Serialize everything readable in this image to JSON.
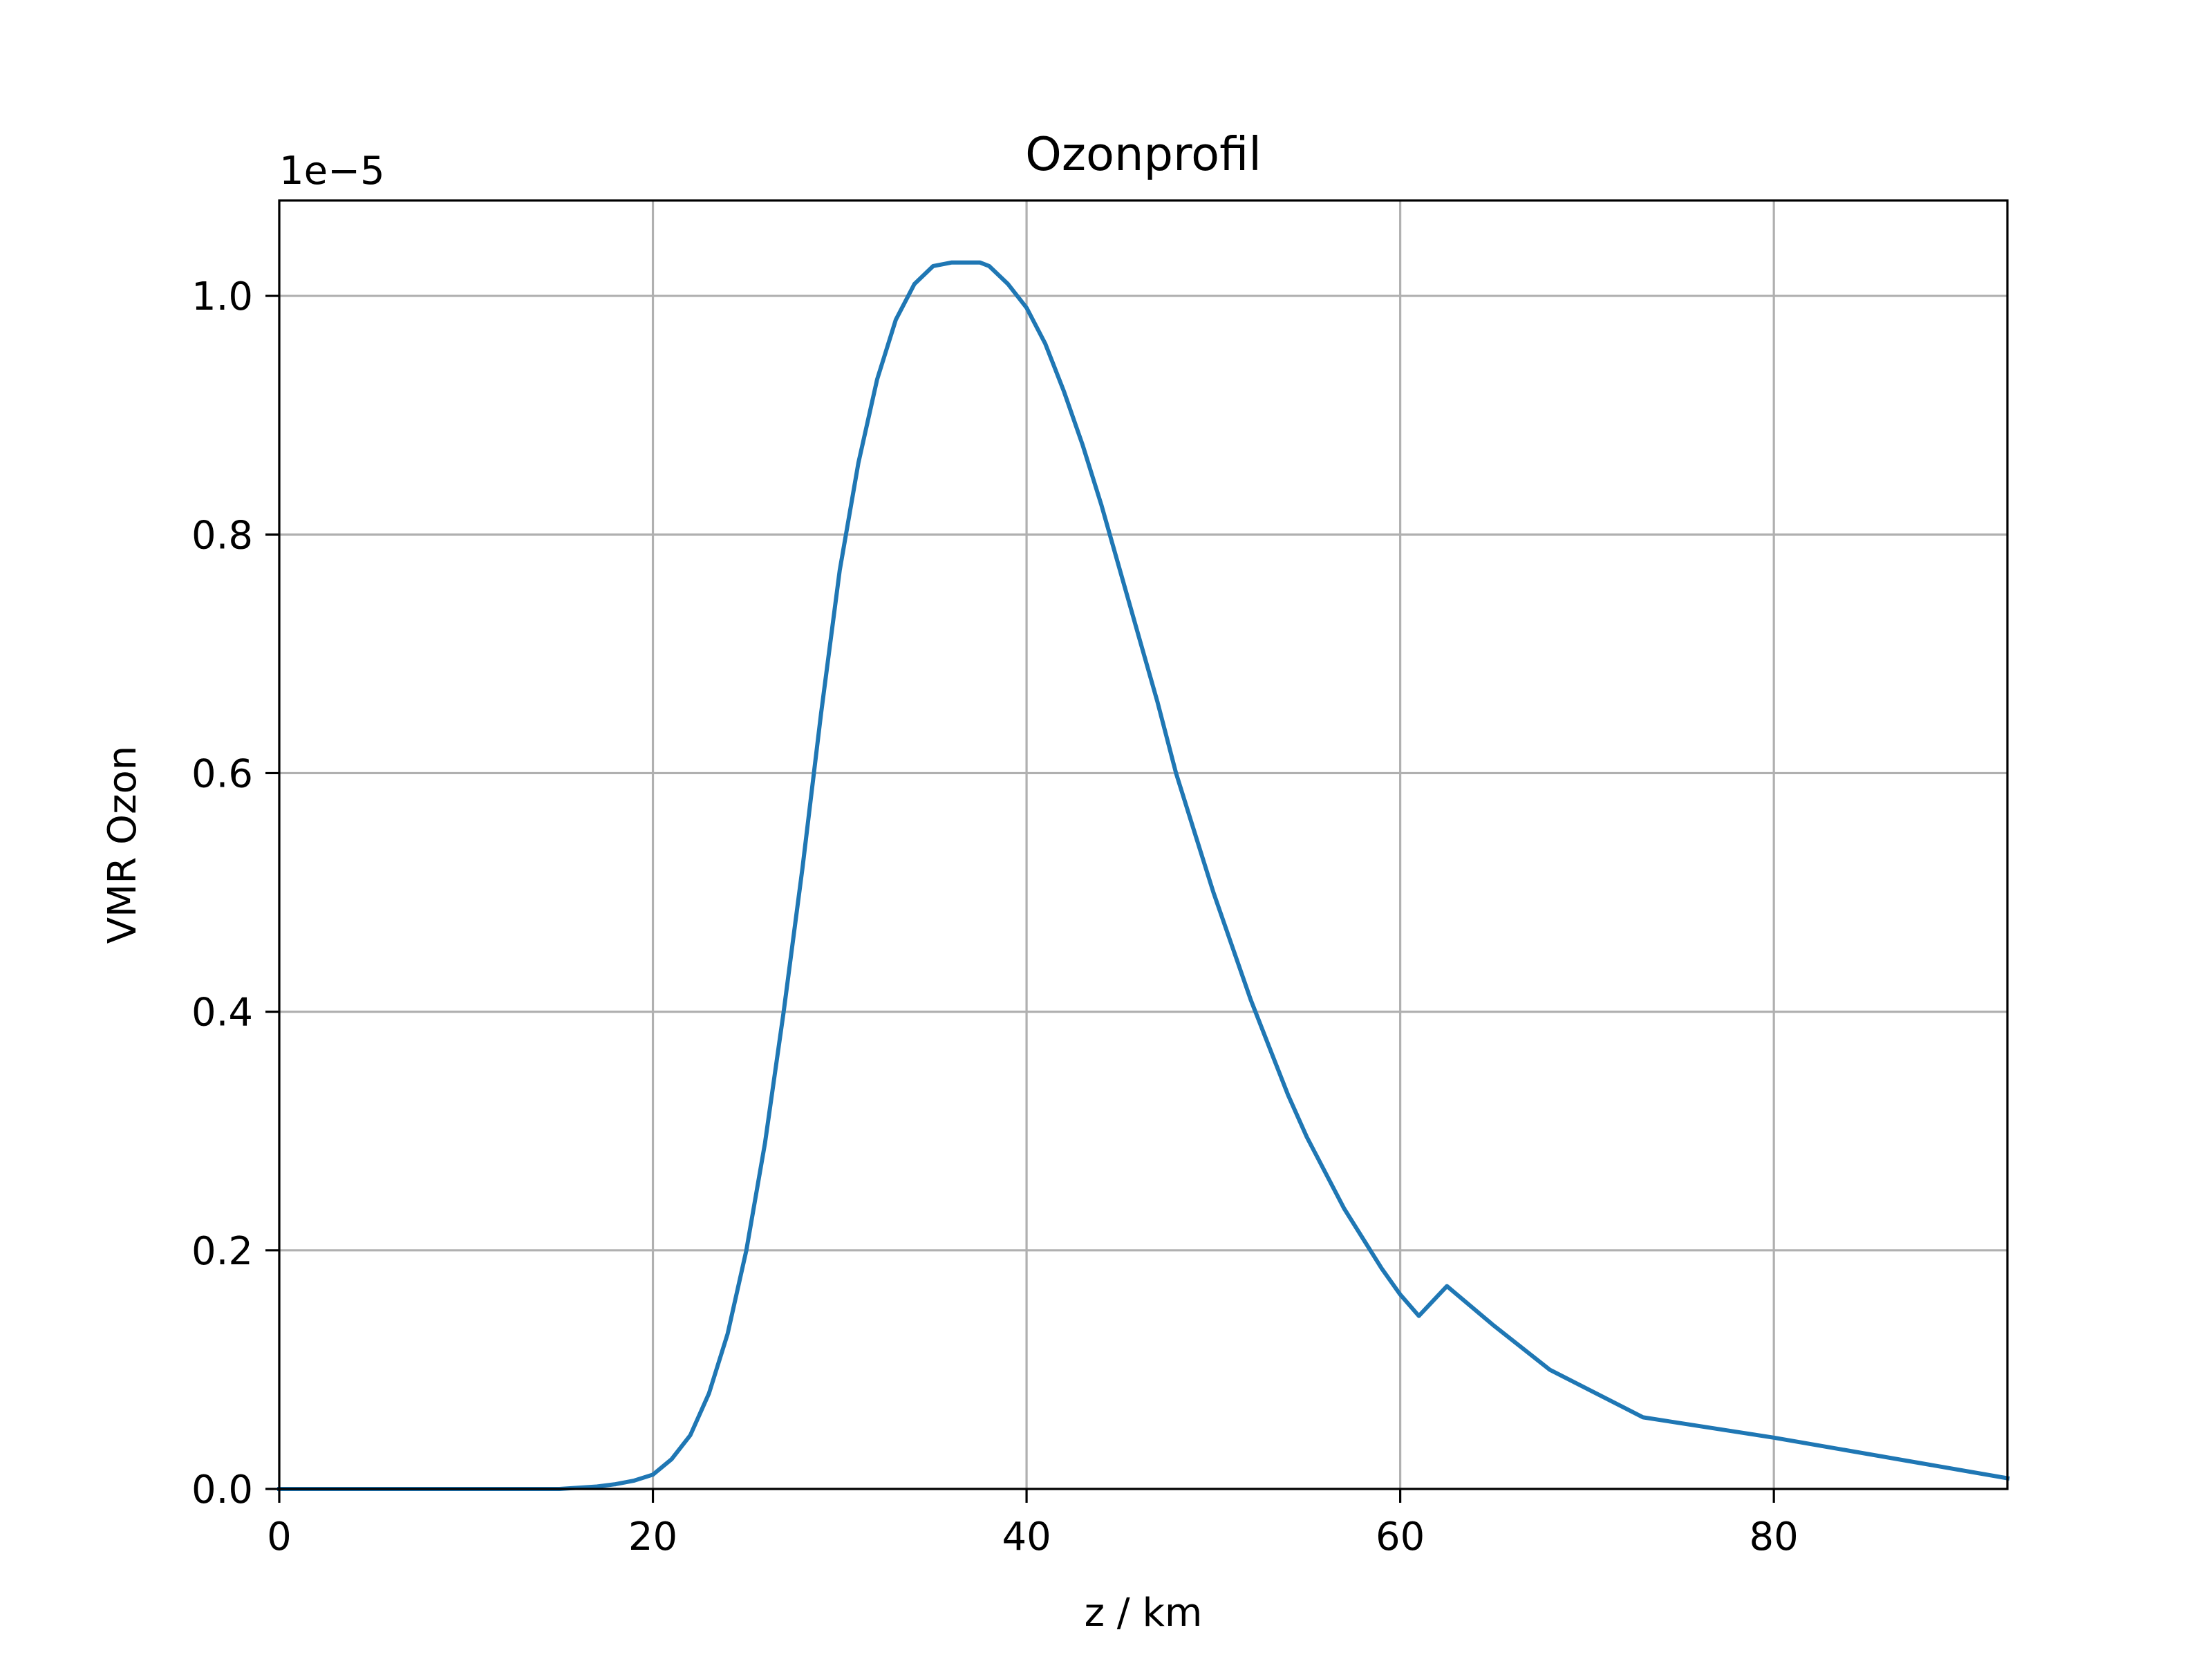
{
  "chart_data": {
    "type": "line",
    "title": "Ozonprofil",
    "xlabel": "z / km",
    "ylabel": "VMR Ozon",
    "y_offset_label": "1e−5",
    "xlim": [
      0,
      92.5
    ],
    "ylim": [
      0,
      1.08
    ],
    "xticks": [
      0,
      20,
      40,
      60,
      80
    ],
    "xtick_labels": [
      "0",
      "20",
      "40",
      "60",
      "80"
    ],
    "yticks": [
      0.0,
      0.2,
      0.4,
      0.6,
      0.8,
      1.0
    ],
    "ytick_labels": [
      "0.0",
      "0.2",
      "0.4",
      "0.6",
      "0.8",
      "1.0"
    ],
    "grid": true,
    "line_color": "#1f77b4",
    "series": [
      {
        "x": [
          0,
          5,
          10,
          15,
          17,
          18,
          19,
          20,
          21,
          22,
          23,
          24,
          25,
          26,
          27,
          28,
          29,
          30,
          31,
          32,
          33,
          34,
          35,
          36,
          37,
          37.5,
          38,
          39,
          40,
          41,
          42,
          43,
          44,
          45,
          46,
          47,
          48,
          49,
          50,
          51,
          52,
          53,
          54,
          55,
          56,
          57,
          58,
          59,
          60,
          61,
          62.5,
          65,
          68,
          73,
          80,
          92.5
        ],
        "y": [
          0,
          0,
          0,
          0,
          0.002,
          0.004,
          0.007,
          0.012,
          0.025,
          0.045,
          0.08,
          0.13,
          0.2,
          0.29,
          0.4,
          0.52,
          0.65,
          0.77,
          0.86,
          0.93,
          0.98,
          1.01,
          1.025,
          1.028,
          1.028,
          1.028,
          1.025,
          1.01,
          0.99,
          0.96,
          0.92,
          0.875,
          0.825,
          0.77,
          0.715,
          0.66,
          0.6,
          0.55,
          0.5,
          0.455,
          0.41,
          0.37,
          0.33,
          0.295,
          0.265,
          0.235,
          0.21,
          0.185,
          0.163,
          0.145,
          0.17,
          0.137,
          0.1,
          0.06,
          0.043,
          0.009
        ]
      }
    ]
  }
}
